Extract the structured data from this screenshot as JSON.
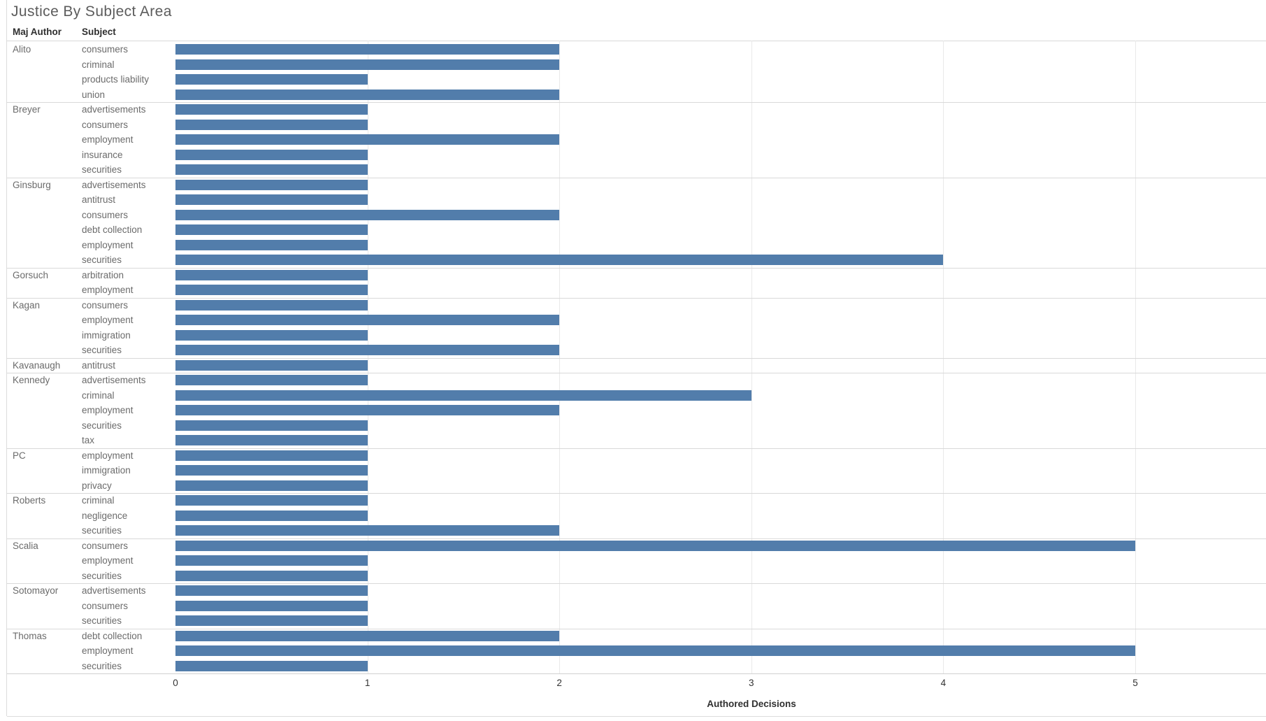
{
  "title": "Justice By Subject Area",
  "columns": {
    "author": "Maj Author",
    "subject": "Subject"
  },
  "chart_data": {
    "type": "bar",
    "orientation": "horizontal",
    "title": "Justice By Subject Area",
    "xlabel": "Authored Decisions",
    "x_ticks": [
      0,
      1,
      2,
      3,
      4,
      5
    ],
    "xlim": [
      0,
      5.68
    ],
    "grid": "vertical-light",
    "bar_color": "#527dab",
    "groups": [
      {
        "author": "Alito",
        "rows": [
          {
            "subject": "consumers",
            "value": 2
          },
          {
            "subject": "criminal",
            "value": 2
          },
          {
            "subject": "products liability",
            "value": 1
          },
          {
            "subject": "union",
            "value": 2
          }
        ]
      },
      {
        "author": "Breyer",
        "rows": [
          {
            "subject": "advertisements",
            "value": 1
          },
          {
            "subject": "consumers",
            "value": 1
          },
          {
            "subject": "employment",
            "value": 2
          },
          {
            "subject": "insurance",
            "value": 1
          },
          {
            "subject": "securities",
            "value": 1
          }
        ]
      },
      {
        "author": "Ginsburg",
        "rows": [
          {
            "subject": "advertisements",
            "value": 1
          },
          {
            "subject": "antitrust",
            "value": 1
          },
          {
            "subject": "consumers",
            "value": 2
          },
          {
            "subject": "debt collection",
            "value": 1
          },
          {
            "subject": "employment",
            "value": 1
          },
          {
            "subject": "securities",
            "value": 4
          }
        ]
      },
      {
        "author": "Gorsuch",
        "rows": [
          {
            "subject": "arbitration",
            "value": 1
          },
          {
            "subject": "employment",
            "value": 1
          }
        ]
      },
      {
        "author": "Kagan",
        "rows": [
          {
            "subject": "consumers",
            "value": 1
          },
          {
            "subject": "employment",
            "value": 2
          },
          {
            "subject": "immigration",
            "value": 1
          },
          {
            "subject": "securities",
            "value": 2
          }
        ]
      },
      {
        "author": "Kavanaugh",
        "rows": [
          {
            "subject": "antitrust",
            "value": 1
          }
        ]
      },
      {
        "author": "Kennedy",
        "rows": [
          {
            "subject": "advertisements",
            "value": 1
          },
          {
            "subject": "criminal",
            "value": 3
          },
          {
            "subject": "employment",
            "value": 2
          },
          {
            "subject": "securities",
            "value": 1
          },
          {
            "subject": "tax",
            "value": 1
          }
        ]
      },
      {
        "author": "PC",
        "rows": [
          {
            "subject": "employment",
            "value": 1
          },
          {
            "subject": "immigration",
            "value": 1
          },
          {
            "subject": "privacy",
            "value": 1
          }
        ]
      },
      {
        "author": "Roberts",
        "rows": [
          {
            "subject": "criminal",
            "value": 1
          },
          {
            "subject": "negligence",
            "value": 1
          },
          {
            "subject": "securities",
            "value": 2
          }
        ]
      },
      {
        "author": "Scalia",
        "rows": [
          {
            "subject": "consumers",
            "value": 5
          },
          {
            "subject": "employment",
            "value": 1
          },
          {
            "subject": "securities",
            "value": 1
          }
        ]
      },
      {
        "author": "Sotomayor",
        "rows": [
          {
            "subject": "advertisements",
            "value": 1
          },
          {
            "subject": "consumers",
            "value": 1
          },
          {
            "subject": "securities",
            "value": 1
          }
        ]
      },
      {
        "author": "Thomas",
        "rows": [
          {
            "subject": "debt collection",
            "value": 2
          },
          {
            "subject": "employment",
            "value": 5
          },
          {
            "subject": "securities",
            "value": 1
          }
        ]
      }
    ]
  }
}
